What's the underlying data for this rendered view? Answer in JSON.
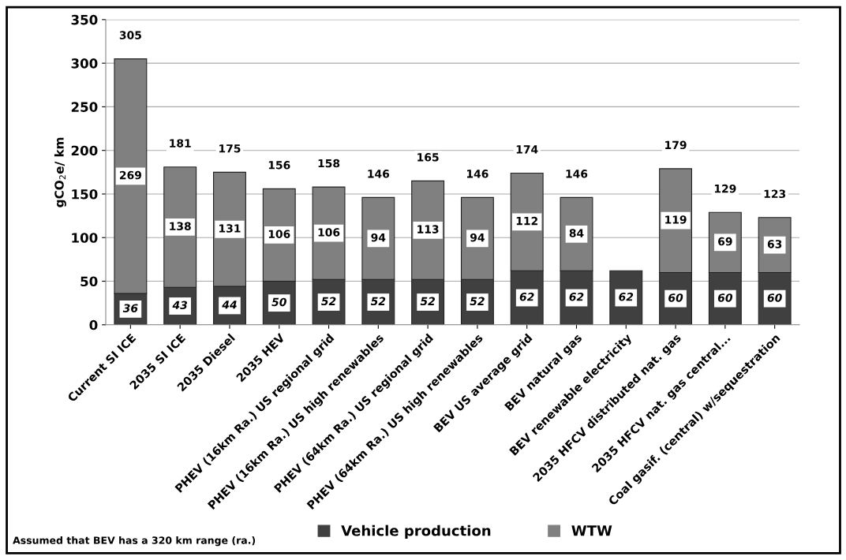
{
  "chart_data": {
    "type": "bar",
    "stacked": true,
    "ylabel": "gCO$_{2}$e/ km",
    "categories": [
      "Current SI ICE",
      "2035 SI ICE",
      "2035 Diesel",
      "2035 HEV",
      "PHEV (16km Ra.) US regional grid",
      "PHEV (16km Ra.) US high renewables",
      "PHEV (64km Ra.) US regional grid",
      "PHEV (64km Ra.) US high renewables",
      "BEV US average grid",
      "BEV natural gas",
      "BEV renewable electricity",
      "2035 HFCV distributed nat. gas",
      "2035 HFCV nat. gas central...",
      "Coal gasif. (central) w/sequestration"
    ],
    "series": [
      {
        "name": "Vehicle production",
        "color": "#404040",
        "values": [
          36,
          43,
          44,
          50,
          52,
          52,
          52,
          52,
          62,
          62,
          62,
          60,
          60,
          60
        ],
        "value_labels": [
          "36",
          "43",
          "44",
          "50",
          "52",
          "52",
          "52",
          "52",
          "62",
          "62",
          "62",
          "60",
          "60",
          "60"
        ]
      },
      {
        "name": "WTW",
        "color": "#808080",
        "values": [
          269,
          138,
          131,
          106,
          106,
          94,
          113,
          94,
          112,
          84,
          null,
          119,
          69,
          63
        ],
        "value_labels": [
          "269",
          "138",
          "131",
          "106",
          "106",
          "94",
          "113",
          "94",
          "112",
          "84",
          null,
          "119",
          "69",
          "63"
        ]
      }
    ],
    "totals": [
      "305",
      "181",
      "175",
      "156",
      "158",
      "146",
      "165",
      "146",
      "174",
      "146",
      null,
      "179",
      "129",
      "123"
    ],
    "ylim": [
      0,
      350
    ],
    "yticks": [
      0,
      50,
      100,
      150,
      200,
      250,
      300,
      350
    ],
    "grid": "y",
    "legend": "bottom",
    "annotations": [
      "Assumed that BEV has a 320 km range (ra.)"
    ]
  }
}
